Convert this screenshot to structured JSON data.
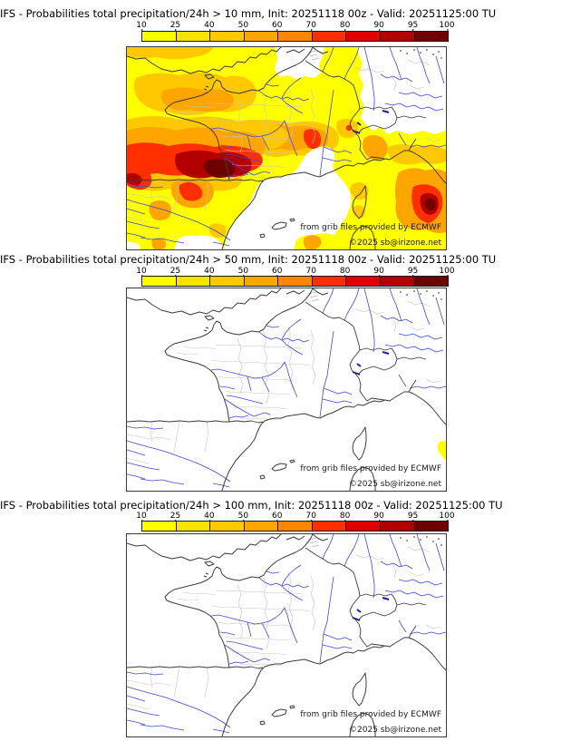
{
  "panels": [
    {
      "title": "IFS - Probabilities total precipitation/24h > 10 mm, Init: 20251118 00z - Valid: 20251125:00 TU",
      "threshold_mm": "10"
    },
    {
      "title": "IFS - Probabilities total precipitation/24h > 50 mm, Init: 20251118 00z - Valid: 20251125:00 TU",
      "threshold_mm": "50"
    },
    {
      "title": "IFS - Probabilities total precipitation/24h > 100 mm, Init: 20251118 00z - Valid: 20251125:00 TU",
      "threshold_mm": "100"
    }
  ],
  "colorbar": {
    "labels": [
      "10",
      "25",
      "40",
      "50",
      "60",
      "70",
      "80",
      "90",
      "95",
      "100"
    ],
    "palette": [
      "#ffff00",
      "#f6e400",
      "#ffc800",
      "#ffa500",
      "#ff8700",
      "#ff2f00",
      "#e00000",
      "#b20000",
      "#6f0000"
    ]
  },
  "attribution": {
    "line1": "from grib files provided by ECMWF",
    "line2": "©2025 sb@irizone.net"
  },
  "map_style": {
    "river_color": "#3d49e0",
    "coast_color": "#3c3c3c",
    "admin_color": "#c6c6c6",
    "lake_color": "#16249a",
    "sea_color": "#ffffff"
  }
}
